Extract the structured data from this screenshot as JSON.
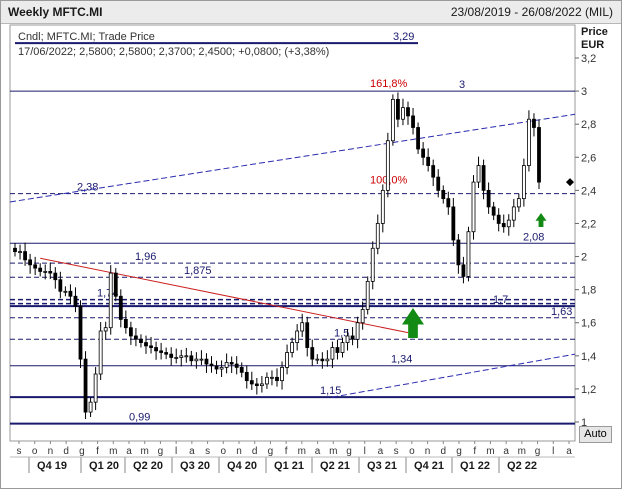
{
  "header": {
    "title": "Weekly MFTC.MI",
    "date_range": "23/08/2019 - 26/08/2022 (MIL)"
  },
  "legend": {
    "line1": "Cndl; MFTC.MI; Trade Price",
    "line2": "17/06/2022; 2,5800; 2,5800; 2,3700; 2,4500; +0,0800; (+3,38%)"
  },
  "axis": {
    "title": "Price",
    "unit": "EUR",
    "auto_label": "Auto"
  },
  "chart_data": {
    "type": "candlestick",
    "symbol": "MFTC.MI",
    "interval": "Weekly",
    "currency": "EUR",
    "ylim": [
      0.95,
      3.3
    ],
    "y_ticks": [
      {
        "value": 3.2,
        "label": "3,2"
      },
      {
        "value": 3.0,
        "label": "3"
      },
      {
        "value": 2.8,
        "label": "2,8"
      },
      {
        "value": 2.6,
        "label": "2,6"
      },
      {
        "value": 2.4,
        "label": "2,4"
      },
      {
        "value": 2.2,
        "label": "2,2"
      },
      {
        "value": 2.0,
        "label": "2"
      },
      {
        "value": 1.8,
        "label": "1,8"
      },
      {
        "value": 1.6,
        "label": "1,6"
      },
      {
        "value": 1.4,
        "label": "1,4"
      },
      {
        "value": 1.2,
        "label": "1,2"
      },
      {
        "value": 1.0,
        "label": "1"
      }
    ],
    "month_ticks": [
      "s",
      "o",
      "n",
      "d",
      "g",
      "f",
      "m",
      "a",
      "m",
      "g",
      "l",
      "a",
      "s",
      "o",
      "n",
      "d",
      "g",
      "f",
      "m",
      "a",
      "m",
      "g",
      "l",
      "a",
      "s",
      "o",
      "n",
      "d",
      "g",
      "f",
      "m",
      "a",
      "m",
      "g",
      "l",
      "a"
    ],
    "quarters": [
      "Q4 19",
      "Q1 20",
      "Q2 20",
      "Q3 20",
      "Q4 20",
      "Q1 21",
      "Q2 21",
      "Q3 21",
      "Q4 21",
      "Q1 22",
      "Q2 22"
    ],
    "last_candle": {
      "date": "17/06/2022",
      "open": 2.58,
      "high": 2.58,
      "low": 2.37,
      "close": 2.45,
      "change": 0.08,
      "change_pct": 3.38
    },
    "close_series": [
      2.03,
      2.03,
      1.98,
      1.95,
      1.93,
      1.91,
      1.91,
      1.9,
      1.86,
      1.79,
      1.79,
      1.76,
      1.7,
      1.38,
      1.06,
      1.12,
      1.29,
      1.55,
      1.57,
      1.9,
      1.76,
      1.62,
      1.57,
      1.52,
      1.5,
      1.48,
      1.46,
      1.45,
      1.43,
      1.42,
      1.41,
      1.39,
      1.39,
      1.4,
      1.4,
      1.37,
      1.38,
      1.38,
      1.35,
      1.34,
      1.32,
      1.33,
      1.36,
      1.35,
      1.33,
      1.3,
      1.25,
      1.23,
      1.22,
      1.23,
      1.27,
      1.27,
      1.25,
      1.33,
      1.42,
      1.48,
      1.55,
      1.6,
      1.45,
      1.38,
      1.38,
      1.37,
      1.38,
      1.45,
      1.42,
      1.48,
      1.52,
      1.5,
      1.6,
      1.68,
      1.85,
      2.05,
      2.2,
      2.4,
      2.7,
      2.95,
      2.83,
      2.9,
      2.85,
      2.78,
      2.65,
      2.6,
      2.55,
      2.48,
      2.4,
      2.35,
      2.3,
      2.1,
      1.95,
      1.88,
      2.15,
      2.45,
      2.55,
      2.4,
      2.3,
      2.25,
      2.2,
      2.18,
      2.22,
      2.3,
      2.35,
      2.55,
      2.83,
      2.78,
      2.45
    ],
    "horizontal_levels": [
      {
        "value": 3.29,
        "label": "3,29",
        "style": "solid-thick"
      },
      {
        "value": 3.0,
        "label": "3",
        "style": "solid-thin"
      },
      {
        "value": 2.38,
        "label": "2,38",
        "style": "dashed"
      },
      {
        "value": 2.08,
        "label": "2,08",
        "style": "solid-thin"
      },
      {
        "value": 1.96,
        "label": "1,96",
        "style": "dashed"
      },
      {
        "value": 1.875,
        "label": "1,875",
        "style": "dashed"
      },
      {
        "value": 1.74,
        "label": "1,74",
        "style": "dashed-double"
      },
      {
        "value": 1.7,
        "label": "1,7",
        "style": "solid-thick"
      },
      {
        "value": 1.63,
        "label": "1,63",
        "style": "dashed"
      },
      {
        "value": 1.5,
        "label": "1,5",
        "style": "dashed"
      },
      {
        "value": 1.34,
        "label": "1,34",
        "style": "solid-thin"
      },
      {
        "value": 1.15,
        "label": "1,15",
        "style": "solid-thick"
      },
      {
        "value": 0.99,
        "label": "0,99",
        "style": "solid-thick"
      }
    ],
    "fib_labels": [
      {
        "label": "161,8%",
        "value": 3.0
      },
      {
        "label": "100,0%",
        "value": 2.38
      }
    ],
    "trend_channel": {
      "upper": {
        "from": [
          0,
          2.35
        ],
        "to": [
          115,
          2.86
        ]
      },
      "lower": {
        "from": [
          55,
          1.15
        ],
        "to": [
          115,
          1.41
        ]
      }
    },
    "red_trendline": {
      "from": [
        5,
        1.99
      ],
      "to": [
        78,
        1.54
      ]
    },
    "last_price": 2.45,
    "colors": {
      "candle_up": "#ffffff",
      "candle_down": "#000000",
      "level_line": "#1a1a6e",
      "channel": "#2a2ab0",
      "trendline": "#cc2222",
      "fib_label": "#cc0000",
      "arrow": "#138a13"
    }
  }
}
